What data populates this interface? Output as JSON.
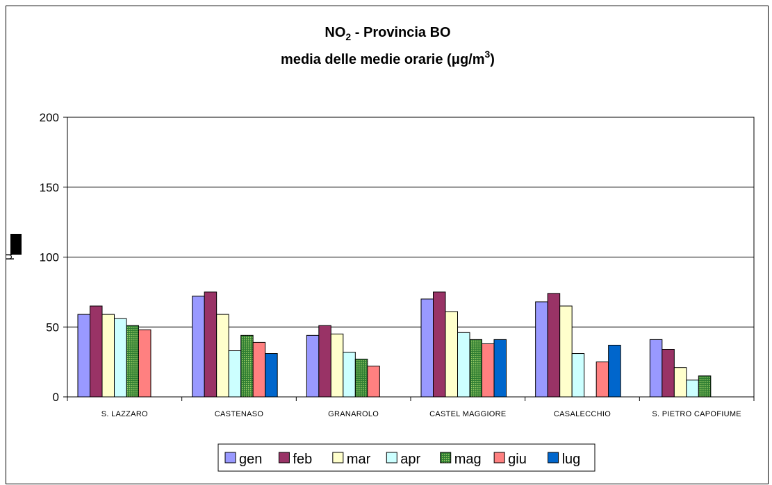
{
  "chart_data": {
    "type": "bar",
    "title_line1": "NO",
    "title_sub": "2",
    "title_line1_rest": " - Provincia BO",
    "title_line2": "media delle medie orarie (",
    "title_mu": "μ",
    "title_gm": "g/m",
    "title_sup": "3",
    "title_close": ")",
    "ylabel": "μ",
    "ylim": [
      0,
      200
    ],
    "yticks": [
      0,
      50,
      100,
      150,
      200
    ],
    "grid": true,
    "legend_position": "bottom",
    "categories": [
      "S. LAZZARO",
      "CASTENASO",
      "GRANAROLO",
      "CASTEL MAGGIORE",
      "CASALECCHIO",
      "S. PIETRO CAPOFIUME"
    ],
    "series": [
      {
        "name": "gen",
        "color": "#9999ff",
        "values": [
          59,
          72,
          44,
          70,
          68,
          41
        ]
      },
      {
        "name": "feb",
        "color": "#993366",
        "values": [
          65,
          75,
          51,
          75,
          74,
          34
        ]
      },
      {
        "name": "mar",
        "color": "#ffffcc",
        "values": [
          59,
          59,
          45,
          61,
          65,
          21
        ]
      },
      {
        "name": "apr",
        "color": "#ccffff",
        "values": [
          56,
          33,
          32,
          46,
          31,
          12
        ]
      },
      {
        "name": "mag",
        "color": "#339933",
        "pattern": "dotted",
        "values": [
          51,
          44,
          27,
          41,
          null,
          15
        ]
      },
      {
        "name": "giu",
        "color": "#ff8080",
        "values": [
          48,
          39,
          22,
          38,
          25,
          null
        ]
      },
      {
        "name": "lug",
        "color": "#0066cc",
        "values": [
          null,
          31,
          null,
          41,
          37,
          null
        ]
      }
    ]
  }
}
